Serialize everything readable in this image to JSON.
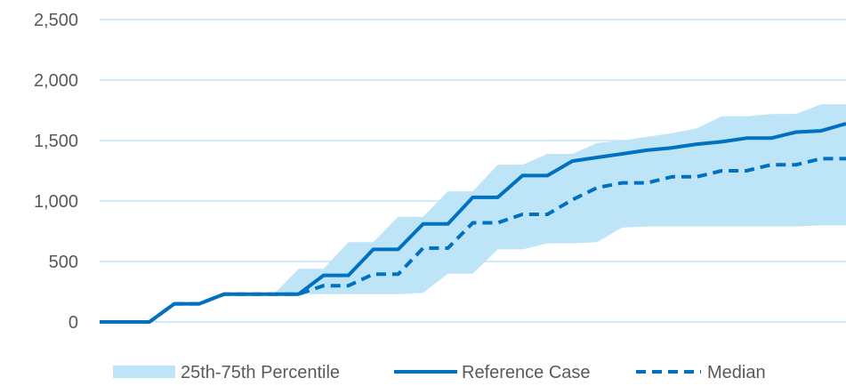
{
  "chart_data": {
    "type": "line",
    "title": "",
    "xlabel": "",
    "ylabel": "",
    "ylim": [
      0,
      2500
    ],
    "yticks": [
      0,
      500,
      1000,
      1500,
      2000,
      2500
    ],
    "ytick_labels": [
      "0",
      "500",
      "1,000",
      "1,500",
      "2,000",
      "2,500"
    ],
    "grid": "horizontal",
    "legend_position": "bottom",
    "x": [
      0,
      1,
      2,
      3,
      4,
      5,
      6,
      7,
      8,
      9,
      10,
      11,
      12,
      13,
      14,
      15,
      16,
      17,
      18,
      19,
      20,
      21,
      22,
      23,
      24,
      25,
      26,
      27,
      28,
      29,
      30
    ],
    "series": [
      {
        "name": "25th-75th Percentile",
        "kind": "band",
        "color": "#bee4f8",
        "lower": [
          0,
          0,
          0,
          150,
          150,
          230,
          230,
          230,
          230,
          230,
          230,
          230,
          230,
          240,
          400,
          400,
          600,
          600,
          650,
          650,
          660,
          780,
          790,
          790,
          790,
          790,
          790,
          790,
          790,
          800,
          800
        ],
        "upper": [
          0,
          0,
          0,
          150,
          150,
          230,
          230,
          230,
          440,
          440,
          660,
          660,
          870,
          870,
          1080,
          1080,
          1300,
          1300,
          1390,
          1390,
          1480,
          1500,
          1530,
          1560,
          1600,
          1700,
          1700,
          1720,
          1720,
          1800,
          1800
        ]
      },
      {
        "name": "Reference Case",
        "kind": "line",
        "style": "solid",
        "color": "#0070c0",
        "values": [
          0,
          0,
          0,
          150,
          150,
          230,
          230,
          230,
          230,
          385,
          385,
          600,
          600,
          810,
          810,
          1030,
          1030,
          1210,
          1210,
          1330,
          1360,
          1390,
          1420,
          1440,
          1470,
          1490,
          1520,
          1520,
          1570,
          1580,
          1640
        ]
      },
      {
        "name": "Median",
        "kind": "line",
        "style": "dashed",
        "color": "#0070c0",
        "values": [
          0,
          0,
          0,
          150,
          150,
          230,
          230,
          230,
          230,
          300,
          300,
          395,
          395,
          610,
          610,
          820,
          820,
          890,
          890,
          1010,
          1110,
          1150,
          1150,
          1200,
          1200,
          1250,
          1250,
          1300,
          1300,
          1350,
          1350
        ]
      }
    ]
  }
}
